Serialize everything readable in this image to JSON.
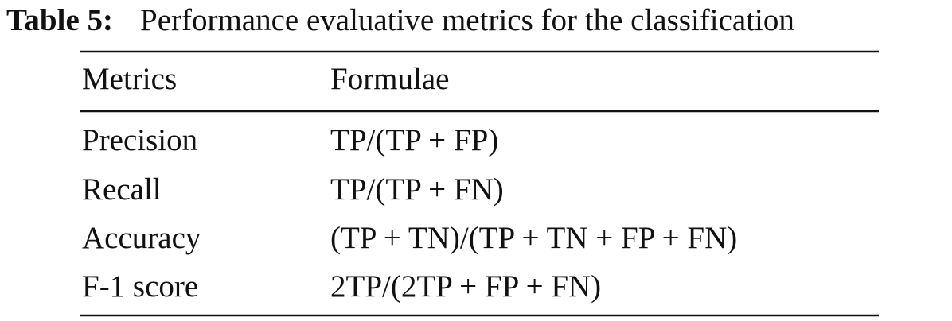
{
  "caption": {
    "label": "Table 5:",
    "text": "Performance evaluative metrics for the classification"
  },
  "table": {
    "header": [
      "Metrics",
      "Formulae"
    ],
    "rows": [
      [
        "Precision",
        "TP/(TP + FP)"
      ],
      [
        "Recall",
        "TP/(TP + FN)"
      ],
      [
        "Accuracy",
        "(TP + TN)/(TP + TN + FP + FN)"
      ],
      [
        "F-1 score",
        "2TP/(2TP + FP + FN)"
      ]
    ]
  }
}
